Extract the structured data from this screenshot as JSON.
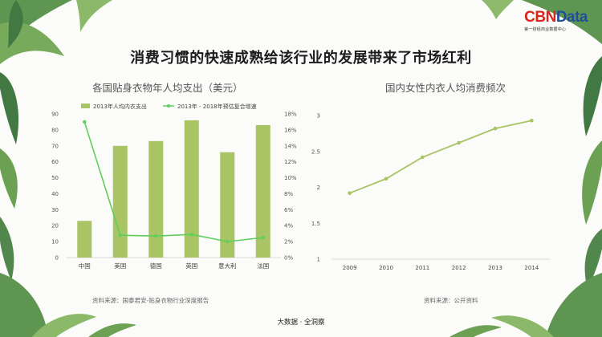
{
  "page": {
    "title": "消费习惯的快速成熟给该行业的发展带来了市场红利",
    "logo": {
      "main_a": "CBN",
      "main_b": "Data",
      "sub": "第一财经商业数据中心"
    },
    "footer": "大数据 · 全洞察",
    "colors": {
      "bar": "#a8c464",
      "line_left": "#5fce5a",
      "line_right": "#a8c464",
      "accent_red": "#d9251c",
      "accent_blue": "#1f4e9a"
    }
  },
  "chart_data": [
    {
      "type": "bar",
      "title": "各国贴身衣物年人均支出（美元）",
      "categories": [
        "中国",
        "美国",
        "德国",
        "英国",
        "意大利",
        "法国"
      ],
      "series": [
        {
          "name": "2013年人均内衣支出",
          "type": "bar",
          "axis": "left",
          "values": [
            23,
            70,
            73,
            86,
            66,
            83
          ]
        },
        {
          "name": "2013年 - 2018年预估复合增速",
          "type": "line",
          "axis": "right",
          "values": [
            17,
            2.8,
            2.7,
            2.9,
            2.0,
            2.5
          ]
        }
      ],
      "y_left": {
        "ylim": [
          0,
          90
        ],
        "ticks": [
          "0",
          "10",
          "20",
          "30",
          "40",
          "50",
          "60",
          "70",
          "80",
          "90"
        ]
      },
      "y_right": {
        "ylim": [
          0,
          18
        ],
        "ticks": [
          "0%",
          "2%",
          "4%",
          "6%",
          "8%",
          "10%",
          "12%",
          "14%",
          "16%",
          "18%"
        ]
      },
      "legend": "top",
      "grid": false,
      "source": "资料来源：国泰君安-贴身衣物行业深度报告"
    },
    {
      "type": "line",
      "title": "国内女性内衣人均消费频次",
      "x": [
        "2009",
        "2010",
        "2011",
        "2012",
        "2013",
        "2014"
      ],
      "series": [
        {
          "values": [
            1.92,
            2.12,
            2.42,
            2.62,
            2.82,
            2.93
          ]
        }
      ],
      "ylim": [
        1,
        3
      ],
      "yticks": [
        "1",
        "1.5",
        "2",
        "2.5",
        "3"
      ],
      "grid": false,
      "source": "资料来源：公开资料"
    }
  ]
}
